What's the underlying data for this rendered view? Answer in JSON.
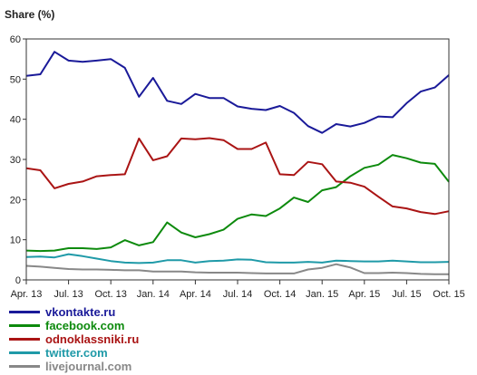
{
  "chart_data": {
    "type": "line",
    "title": "",
    "ylabel": "Share (%)",
    "xlabel": "",
    "ylim": [
      0,
      60
    ],
    "yticks": [
      0,
      10,
      20,
      30,
      40,
      50,
      60
    ],
    "grid": false,
    "legend_position": "bottom-left",
    "x_tick_labels": [
      "Apr. 13",
      "Jul. 13",
      "Oct. 13",
      "Jan. 14",
      "Apr. 14",
      "Jul. 14",
      "Oct. 14",
      "Jan. 15",
      "Apr. 15",
      "Jul. 15",
      "Oct. 15"
    ],
    "x": [
      "Apr. 13",
      "May 13",
      "Jun. 13",
      "Jul. 13",
      "Aug. 13",
      "Sep. 13",
      "Oct. 13",
      "Nov. 13",
      "Dec. 13",
      "Jan. 14",
      "Feb. 14",
      "Mar. 14",
      "Apr. 14",
      "May 14",
      "Jun. 14",
      "Jul. 14",
      "Aug. 14",
      "Sep. 14",
      "Oct. 14",
      "Nov. 14",
      "Dec. 14",
      "Jan. 15",
      "Feb. 15",
      "Mar. 15",
      "Apr. 15",
      "May 15",
      "Jun. 15",
      "Jul. 15",
      "Aug. 15",
      "Sep. 15",
      "Oct. 15"
    ],
    "series": [
      {
        "name": "vkontakte.ru",
        "color": "#1a1a99",
        "values": [
          50.8,
          51.2,
          56.8,
          54.6,
          54.3,
          54.6,
          55.0,
          52.8,
          45.6,
          50.3,
          44.6,
          43.8,
          46.3,
          45.3,
          45.3,
          43.2,
          42.6,
          42.3,
          43.3,
          41.6,
          38.3,
          36.6,
          38.8,
          38.2,
          39.1,
          40.7,
          40.5,
          44.0,
          46.9,
          47.9,
          51.0
        ]
      },
      {
        "name": "facebook.com",
        "color": "#0d8a0d",
        "values": [
          7.3,
          7.2,
          7.3,
          7.9,
          7.9,
          7.7,
          8.1,
          9.9,
          8.6,
          9.4,
          14.3,
          11.8,
          10.6,
          11.4,
          12.5,
          15.2,
          16.3,
          15.9,
          17.8,
          20.5,
          19.4,
          22.3,
          23.1,
          25.8,
          27.9,
          28.7,
          31.1,
          30.3,
          29.2,
          28.9,
          24.4
        ]
      },
      {
        "name": "odnoklassniki.ru",
        "color": "#aa1414",
        "values": [
          27.8,
          27.3,
          22.8,
          23.9,
          24.5,
          25.8,
          26.1,
          26.3,
          35.2,
          29.8,
          30.8,
          35.2,
          35.0,
          35.3,
          34.8,
          32.6,
          32.6,
          34.2,
          26.3,
          26.1,
          29.4,
          28.8,
          24.5,
          24.2,
          23.2,
          20.7,
          18.3,
          17.8,
          16.9,
          16.4,
          17.1
        ]
      },
      {
        "name": "twitter.com",
        "color": "#1f9aa8",
        "values": [
          5.7,
          5.8,
          5.6,
          6.4,
          5.9,
          5.3,
          4.7,
          4.3,
          4.2,
          4.3,
          4.9,
          4.9,
          4.3,
          4.7,
          4.8,
          5.1,
          5.0,
          4.4,
          4.3,
          4.3,
          4.5,
          4.3,
          4.8,
          4.7,
          4.6,
          4.6,
          4.8,
          4.6,
          4.4,
          4.4,
          4.5
        ]
      },
      {
        "name": "livejournal.com",
        "color": "#888888",
        "values": [
          3.5,
          3.3,
          3.0,
          2.7,
          2.6,
          2.6,
          2.5,
          2.4,
          2.4,
          2.1,
          2.1,
          2.1,
          1.9,
          1.8,
          1.8,
          1.8,
          1.7,
          1.6,
          1.6,
          1.6,
          2.6,
          3.0,
          3.9,
          3.1,
          1.7,
          1.7,
          1.8,
          1.7,
          1.5,
          1.4,
          1.4
        ]
      }
    ]
  }
}
